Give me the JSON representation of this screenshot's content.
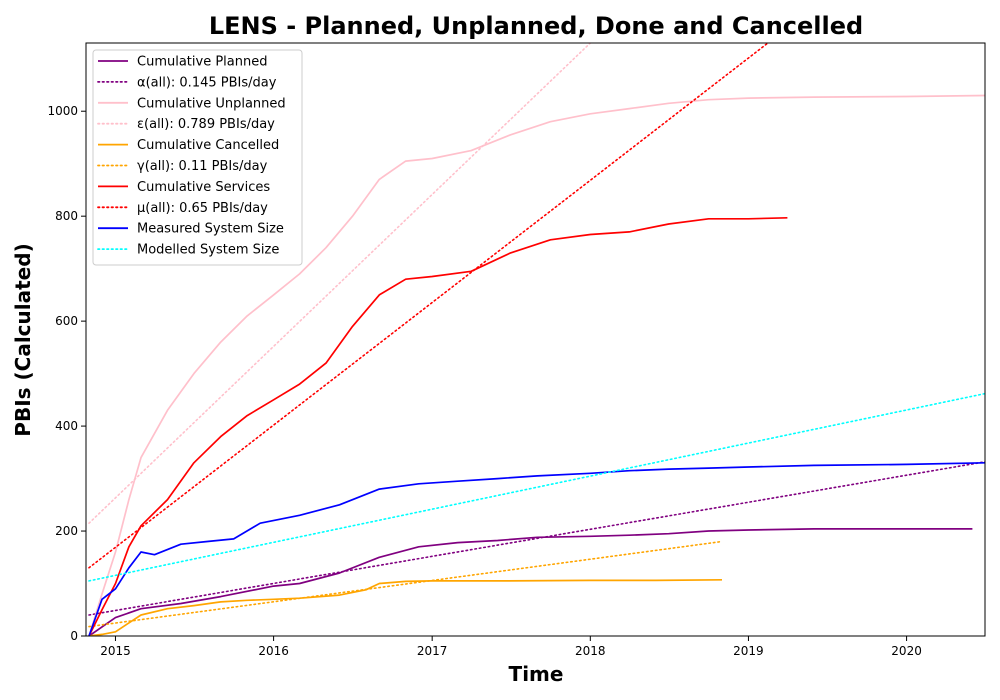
{
  "chart_data": {
    "type": "line",
    "title": "LENS - Planned, Unplanned, Done  and Cancelled",
    "xlabel": "Time",
    "ylabel": "PBIs (Calculated)",
    "xlim": [
      "2014-10-25",
      "2020-06-30"
    ],
    "ylim": [
      0,
      1130
    ],
    "x_ticks": [
      "2015-01-01",
      "2016-01-01",
      "2017-01-01",
      "2018-01-01",
      "2019-01-01",
      "2020-01-01"
    ],
    "x_tick_labels": [
      "2015",
      "2016",
      "2017",
      "2018",
      "2019",
      "2020"
    ],
    "y_ticks": [
      0,
      200,
      400,
      600,
      800,
      1000
    ],
    "y_tick_labels": [
      "0",
      "200",
      "400",
      "600",
      "800",
      "1000"
    ],
    "legend_position": "upper-left",
    "series": [
      {
        "name": "Cumulative Planned",
        "color": "#800080",
        "style": "solid",
        "x": [
          "2014-11-01",
          "2015-01-01",
          "2015-03-01",
          "2015-06-01",
          "2015-09-01",
          "2016-01-01",
          "2016-03-01",
          "2016-06-01",
          "2016-09-01",
          "2016-12-01",
          "2017-03-01",
          "2017-06-01",
          "2017-09-01",
          "2018-01-01",
          "2018-04-01",
          "2018-07-01",
          "2018-10-01",
          "2019-01-01",
          "2019-06-01",
          "2020-01-01",
          "2020-06-01"
        ],
        "y": [
          0,
          35,
          52,
          62,
          75,
          95,
          100,
          120,
          150,
          170,
          178,
          182,
          188,
          190,
          192,
          195,
          200,
          202,
          204,
          204,
          204
        ]
      },
      {
        "name": "α(all): 0.145 PBIs/day",
        "color": "#800080",
        "style": "dotted",
        "x": [
          "2014-11-01",
          "2020-06-30"
        ],
        "y": [
          40,
          332
        ]
      },
      {
        "name": "Cumulative Unplanned",
        "color": "#ffc0cb",
        "style": "solid",
        "x": [
          "2014-11-01",
          "2014-12-01",
          "2015-01-01",
          "2015-02-01",
          "2015-03-01",
          "2015-05-01",
          "2015-07-01",
          "2015-09-01",
          "2015-11-01",
          "2016-01-01",
          "2016-03-01",
          "2016-05-01",
          "2016-07-01",
          "2016-09-01",
          "2016-11-01",
          "2017-01-01",
          "2017-04-01",
          "2017-07-01",
          "2017-10-01",
          "2018-01-01",
          "2018-04-01",
          "2018-07-01",
          "2018-10-01",
          "2019-01-01",
          "2019-06-01",
          "2020-01-01",
          "2020-06-30"
        ],
        "y": [
          0,
          80,
          160,
          260,
          340,
          430,
          500,
          560,
          610,
          650,
          690,
          740,
          800,
          870,
          905,
          910,
          925,
          955,
          980,
          995,
          1005,
          1015,
          1022,
          1025,
          1027,
          1028,
          1030
        ]
      },
      {
        "name": "ε(all): 0.789 PBIs/day",
        "color": "#ffc0cb",
        "style": "dotted",
        "x": [
          "2014-11-01",
          "2018-01-01"
        ],
        "y": [
          215,
          1130
        ]
      },
      {
        "name": "Cumulative Cancelled",
        "color": "#ffa500",
        "style": "solid",
        "x": [
          "2014-11-01",
          "2014-12-01",
          "2015-01-01",
          "2015-02-01",
          "2015-03-01",
          "2015-05-01",
          "2015-07-01",
          "2015-09-01",
          "2015-11-01",
          "2016-01-01",
          "2016-03-01",
          "2016-06-01",
          "2016-08-01",
          "2016-09-01",
          "2016-11-01",
          "2017-01-01",
          "2017-06-01",
          "2018-01-01",
          "2018-06-01",
          "2018-11-01"
        ],
        "y": [
          0,
          3,
          8,
          25,
          40,
          52,
          58,
          65,
          68,
          70,
          72,
          78,
          88,
          100,
          104,
          105,
          105,
          106,
          106,
          107
        ]
      },
      {
        "name": "γ(all): 0.11 PBIs/day",
        "color": "#ffa500",
        "style": "dotted",
        "x": [
          "2014-11-01",
          "2018-11-01"
        ],
        "y": [
          18,
          180
        ]
      },
      {
        "name": "Cumulative Services",
        "color": "#ff0000",
        "style": "solid",
        "x": [
          "2014-11-01",
          "2014-12-01",
          "2015-01-01",
          "2015-02-01",
          "2015-03-01",
          "2015-05-01",
          "2015-07-01",
          "2015-09-01",
          "2015-11-01",
          "2016-01-01",
          "2016-03-01",
          "2016-05-01",
          "2016-07-01",
          "2016-09-01",
          "2016-11-01",
          "2017-01-01",
          "2017-04-01",
          "2017-07-01",
          "2017-10-01",
          "2018-01-01",
          "2018-04-01",
          "2018-07-01",
          "2018-10-01",
          "2019-01-01",
          "2019-04-01"
        ],
        "y": [
          0,
          50,
          100,
          170,
          210,
          260,
          330,
          380,
          420,
          450,
          480,
          520,
          590,
          650,
          680,
          685,
          695,
          730,
          755,
          765,
          770,
          785,
          795,
          795,
          797
        ]
      },
      {
        "name": "μ(all): 0.65 PBIs/day",
        "color": "#ff0000",
        "style": "dotted",
        "x": [
          "2014-11-01",
          "2019-02-15"
        ],
        "y": [
          130,
          1130
        ]
      },
      {
        "name": "Measured System Size",
        "color": "#0000ff",
        "style": "solid",
        "x": [
          "2014-11-01",
          "2014-12-01",
          "2015-01-01",
          "2015-02-01",
          "2015-03-01",
          "2015-04-01",
          "2015-06-01",
          "2015-08-01",
          "2015-10-01",
          "2015-12-01",
          "2016-03-01",
          "2016-06-01",
          "2016-09-01",
          "2016-12-01",
          "2017-03-01",
          "2017-06-01",
          "2017-09-01",
          "2018-01-01",
          "2018-04-01",
          "2018-07-01",
          "2018-10-01",
          "2019-01-01",
          "2019-06-01",
          "2020-01-01",
          "2020-06-30"
        ],
        "y": [
          0,
          70,
          90,
          130,
          160,
          155,
          175,
          180,
          185,
          215,
          230,
          250,
          280,
          290,
          295,
          300,
          305,
          310,
          315,
          318,
          320,
          322,
          325,
          327,
          330
        ]
      },
      {
        "name": "Modelled System Size",
        "color": "#00ffff",
        "style": "dotted",
        "x": [
          "2014-11-01",
          "2020-06-30"
        ],
        "y": [
          105,
          462
        ]
      }
    ]
  }
}
